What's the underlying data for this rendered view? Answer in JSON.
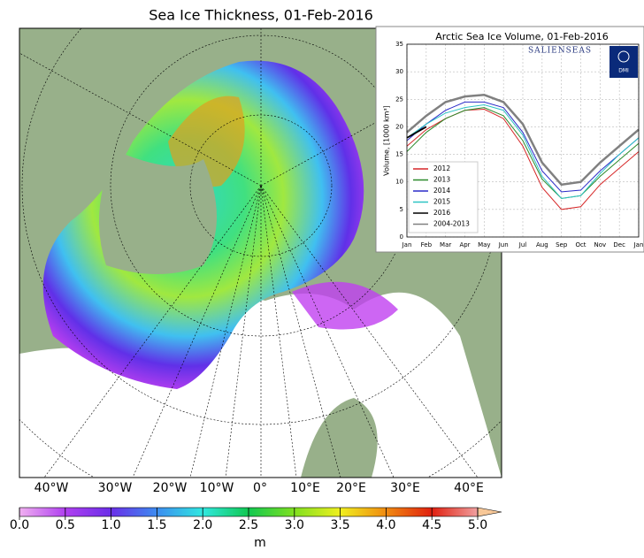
{
  "map": {
    "title": "Sea Ice Thickness, 01-Feb-2016",
    "lon_labels": [
      "40°W",
      "30°W",
      "20°W",
      "10°W",
      "0°",
      "10°E",
      "20°E",
      "30°E",
      "40°E"
    ],
    "colorbar": {
      "ticks": [
        {
          "value": 0,
          "label": "0.0"
        },
        {
          "value": 0.5,
          "label": "0.5"
        },
        {
          "value": 1,
          "label": "1.0"
        },
        {
          "value": 1.5,
          "label": "1.5"
        },
        {
          "value": 2,
          "label": "2.0"
        },
        {
          "value": 2.5,
          "label": "2.5"
        },
        {
          "value": 3,
          "label": "3.0"
        },
        {
          "value": 3.5,
          "label": "3.5"
        },
        {
          "value": 4,
          "label": "4.0"
        },
        {
          "value": 4.5,
          "label": "4.5"
        },
        {
          "value": 5,
          "label": "5.0"
        }
      ],
      "range": [
        0,
        5
      ],
      "unit": "m"
    }
  },
  "chart_data": {
    "type": "line",
    "title": "Arctic Sea Ice Volume, 01-Feb-2016",
    "y_label": "Volume, [1000 km³]",
    "logo_text": "SALIENSEAS",
    "logo_badge": "DMI",
    "categories": [
      "Jan",
      "Feb",
      "Mar",
      "Apr",
      "May",
      "Jun",
      "Jul",
      "Aug",
      "Sep",
      "Oct",
      "Nov",
      "Dec",
      "Jan"
    ],
    "ylim": [
      0,
      35
    ],
    "yticks": [
      0,
      5,
      10,
      15,
      20,
      25,
      30,
      35
    ],
    "grid": true,
    "series": [
      {
        "name": "2012",
        "color": "#d62728",
        "values": [
          16.5,
          19.5,
          21.5,
          23,
          23.2,
          21.5,
          16.5,
          9,
          5,
          5.5,
          9.5,
          12.5,
          15.5
        ]
      },
      {
        "name": "2013",
        "color": "#2a8a2a",
        "values": [
          15.5,
          19,
          21.5,
          23,
          23.5,
          22,
          17.5,
          10.5,
          7,
          7.5,
          11,
          14,
          17
        ]
      },
      {
        "name": "2014",
        "color": "#2b2bc8",
        "values": [
          17.5,
          20.5,
          23,
          24.5,
          24.5,
          23.5,
          19,
          12,
          8.2,
          8.5,
          12,
          15,
          18
        ]
      },
      {
        "name": "2015",
        "color": "#2ec4c4",
        "values": [
          18,
          20.5,
          22.5,
          23.5,
          24,
          23,
          18.5,
          11,
          7,
          7.5,
          11.5,
          15,
          18
        ]
      },
      {
        "name": "2016",
        "color": "#000000",
        "values": [
          18,
          20,
          null,
          null,
          null,
          null,
          null,
          null,
          null,
          null,
          null,
          null,
          null
        ]
      },
      {
        "name": "2004-2013",
        "color": "#808080",
        "values": [
          19,
          22,
          24.5,
          25.5,
          25.8,
          24.5,
          20.5,
          13.5,
          9.5,
          10,
          13.5,
          16.5,
          19.5
        ]
      }
    ]
  }
}
